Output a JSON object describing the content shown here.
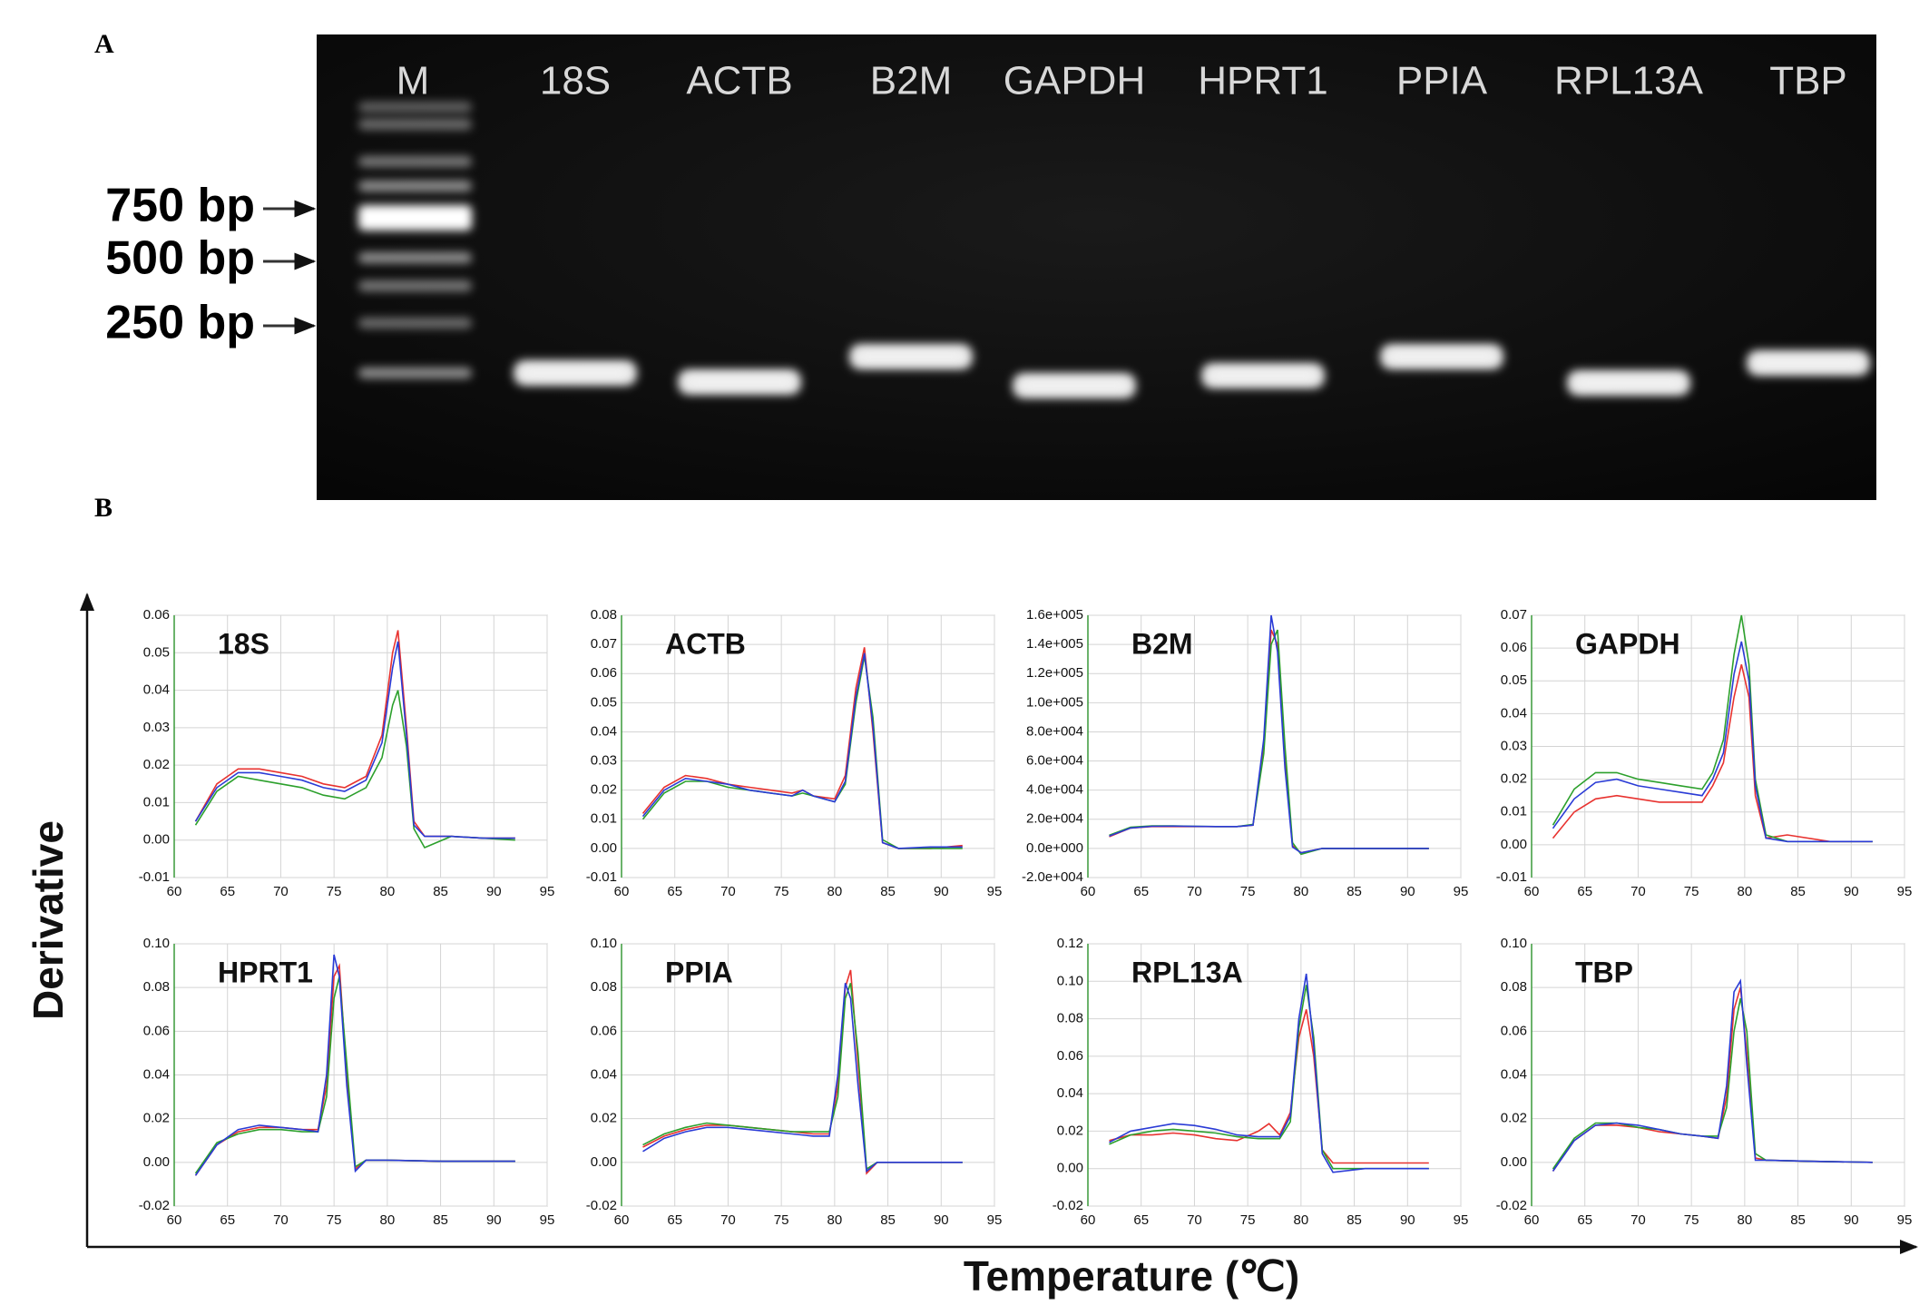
{
  "panel_labels": [
    "A",
    "B"
  ],
  "gel": {
    "lanes": [
      "M",
      "18S",
      "ACTB",
      "B2M",
      "GAPDH",
      "HPRT1",
      "PPIA",
      "RPL13A",
      "TBP"
    ],
    "markers": [
      "750 bp",
      "500 bp",
      "250 bp"
    ]
  },
  "figure": {
    "y_axis_label": "Derivative",
    "x_axis_label": "Temperature (℃)"
  },
  "chart_data": [
    {
      "type": "line",
      "title": "18S",
      "grid": true,
      "xlim": [
        60,
        95
      ],
      "xticks": [
        60,
        65,
        70,
        75,
        80,
        85,
        90,
        95
      ],
      "ylim": [
        -0.01,
        0.06
      ],
      "yticks": [
        -0.01,
        {
          "value": 0,
          "label": "0.00"
        },
        0.01,
        0.02,
        0.03,
        0.04,
        0.05,
        0.06
      ],
      "x": [
        62,
        64,
        66,
        68,
        70,
        72,
        74,
        76,
        78,
        79.5,
        80.5,
        81,
        81.8,
        82.5,
        83.5,
        86,
        89,
        92
      ],
      "series": [
        {
          "color": "#e8322f",
          "values": [
            0.005,
            0.015,
            0.019,
            0.019,
            0.018,
            0.017,
            0.015,
            0.014,
            0.017,
            0.028,
            0.05,
            0.056,
            0.03,
            0.005,
            0.001,
            0.001,
            0.0005,
            0.0005
          ]
        },
        {
          "color": "#2ca02c",
          "values": [
            0.004,
            0.013,
            0.017,
            0.016,
            0.015,
            0.014,
            0.012,
            0.011,
            0.014,
            0.022,
            0.036,
            0.04,
            0.025,
            0.003,
            -0.002,
            0.001,
            0.0005,
            0
          ]
        },
        {
          "color": "#2a3bd6",
          "values": [
            0.005,
            0.014,
            0.018,
            0.018,
            0.017,
            0.016,
            0.014,
            0.013,
            0.016,
            0.026,
            0.046,
            0.053,
            0.028,
            0.004,
            0.001,
            0.001,
            0.0005,
            0.0005
          ]
        }
      ]
    },
    {
      "type": "line",
      "title": "ACTB",
      "grid": true,
      "xlim": [
        60,
        95
      ],
      "xticks": [
        60,
        65,
        70,
        75,
        80,
        85,
        90,
        95
      ],
      "ylim": [
        -0.01,
        0.08
      ],
      "yticks": [
        -0.01,
        {
          "value": 0,
          "label": "0.00"
        },
        0.01,
        0.02,
        0.03,
        0.04,
        0.05,
        0.06,
        0.07,
        0.08
      ],
      "x": [
        62,
        64,
        66,
        68,
        70,
        72,
        74,
        76,
        77,
        78,
        80,
        81,
        82,
        82.8,
        83.6,
        84.5,
        86,
        89,
        92
      ],
      "series": [
        {
          "color": "#e8322f",
          "values": [
            0.012,
            0.021,
            0.025,
            0.024,
            0.022,
            0.021,
            0.02,
            0.019,
            0.02,
            0.018,
            0.017,
            0.025,
            0.055,
            0.069,
            0.04,
            0.002,
            0,
            0,
            0.001
          ]
        },
        {
          "color": "#2ca02c",
          "values": [
            0.01,
            0.019,
            0.023,
            0.023,
            0.021,
            0.02,
            0.019,
            0.018,
            0.019,
            0.018,
            0.016,
            0.022,
            0.05,
            0.066,
            0.045,
            0.003,
            0,
            0,
            0
          ]
        },
        {
          "color": "#2a3bd6",
          "values": [
            0.011,
            0.02,
            0.024,
            0.023,
            0.022,
            0.02,
            0.019,
            0.018,
            0.02,
            0.018,
            0.016,
            0.023,
            0.052,
            0.067,
            0.042,
            0.002,
            0,
            0.0005,
            0.0005
          ]
        }
      ]
    },
    {
      "type": "line",
      "title": "B2M",
      "grid": true,
      "xlim": [
        60,
        95
      ],
      "xticks": [
        60,
        65,
        70,
        75,
        80,
        85,
        90,
        95
      ],
      "ylim": [
        -20000,
        160000
      ],
      "yticks": [
        {
          "value": -20000,
          "label": "-2.0e+004"
        },
        {
          "value": 0,
          "label": "0.0e+000"
        },
        {
          "value": 20000,
          "label": "2.0e+004"
        },
        {
          "value": 40000,
          "label": "4.0e+004"
        },
        {
          "value": 60000,
          "label": "6.0e+004"
        },
        {
          "value": 80000,
          "label": "8.0e+004"
        },
        {
          "value": 100000,
          "label": "1.0e+005"
        },
        {
          "value": 120000,
          "label": "1.2e+005"
        },
        {
          "value": 140000,
          "label": "1.4e+005"
        },
        {
          "value": 160000,
          "label": "1.6e+005"
        }
      ],
      "x": [
        62,
        64,
        66,
        68,
        70,
        72,
        74,
        75.5,
        76.5,
        77.2,
        77.8,
        78.5,
        79.2,
        80,
        82,
        86,
        92
      ],
      "series": [
        {
          "color": "#e8322f",
          "values": [
            8000,
            14000,
            15000,
            15000,
            15000,
            15000,
            15000,
            16000,
            70000,
            150000,
            140000,
            60000,
            2000,
            -3000,
            0,
            0,
            0
          ]
        },
        {
          "color": "#2ca02c",
          "values": [
            9000,
            14500,
            15500,
            15500,
            15200,
            15000,
            15000,
            16500,
            65000,
            140000,
            150000,
            70000,
            4000,
            -4000,
            0,
            0,
            0
          ]
        },
        {
          "color": "#2a3bd6",
          "values": [
            8500,
            14000,
            15200,
            15300,
            15100,
            15000,
            15000,
            16000,
            75000,
            160000,
            135000,
            55000,
            1000,
            -3000,
            0,
            0,
            0
          ]
        }
      ]
    },
    {
      "type": "line",
      "title": "GAPDH",
      "grid": true,
      "xlim": [
        60,
        95
      ],
      "xticks": [
        60,
        65,
        70,
        75,
        80,
        85,
        90,
        95
      ],
      "ylim": [
        -0.01,
        0.07
      ],
      "yticks": [
        -0.01,
        {
          "value": 0,
          "label": "0.00"
        },
        0.01,
        0.02,
        0.03,
        0.04,
        0.05,
        0.06,
        0.07
      ],
      "x": [
        62,
        64,
        66,
        68,
        70,
        72,
        74,
        76,
        77,
        78,
        79,
        79.7,
        80.4,
        81,
        82,
        84,
        88,
        92
      ],
      "series": [
        {
          "color": "#e8322f",
          "values": [
            0.002,
            0.01,
            0.014,
            0.015,
            0.014,
            0.013,
            0.013,
            0.013,
            0.018,
            0.025,
            0.045,
            0.055,
            0.045,
            0.015,
            0.002,
            0.003,
            0.001,
            0.001
          ]
        },
        {
          "color": "#2ca02c",
          "values": [
            0.006,
            0.017,
            0.022,
            0.022,
            0.02,
            0.019,
            0.018,
            0.017,
            0.022,
            0.032,
            0.058,
            0.07,
            0.055,
            0.02,
            0.003,
            0.001,
            0.001,
            0.001
          ]
        },
        {
          "color": "#2a3bd6",
          "values": [
            0.005,
            0.014,
            0.019,
            0.02,
            0.018,
            0.017,
            0.016,
            0.015,
            0.02,
            0.028,
            0.052,
            0.062,
            0.05,
            0.018,
            0.002,
            0.001,
            0.001,
            0.001
          ]
        }
      ]
    },
    {
      "type": "line",
      "title": "HPRT1",
      "grid": true,
      "xlim": [
        60,
        95
      ],
      "xticks": [
        60,
        65,
        70,
        75,
        80,
        85,
        90,
        95
      ],
      "ylim": [
        -0.02,
        0.1
      ],
      "yticks": [
        -0.02,
        {
          "value": 0,
          "label": "0.00"
        },
        0.02,
        0.04,
        0.06,
        0.08,
        {
          "value": 0.1,
          "label": "0.10"
        }
      ],
      "x": [
        62,
        64,
        66,
        68,
        70,
        72,
        73.5,
        74.3,
        75,
        75.5,
        76.2,
        77,
        78,
        80,
        85,
        92
      ],
      "series": [
        {
          "color": "#e8322f",
          "values": [
            -0.006,
            0.008,
            0.014,
            0.016,
            0.016,
            0.015,
            0.015,
            0.035,
            0.085,
            0.09,
            0.04,
            -0.003,
            0.001,
            0.001,
            0.0005,
            0.0005
          ]
        },
        {
          "color": "#2ca02c",
          "values": [
            -0.005,
            0.009,
            0.013,
            0.015,
            0.015,
            0.014,
            0.014,
            0.03,
            0.075,
            0.085,
            0.045,
            -0.002,
            0.001,
            0.001,
            0.0005,
            0.0005
          ]
        },
        {
          "color": "#2a3bd6",
          "values": [
            -0.006,
            0.008,
            0.015,
            0.017,
            0.016,
            0.015,
            0.014,
            0.04,
            0.095,
            0.085,
            0.035,
            -0.004,
            0.001,
            0.001,
            0.0005,
            0.0005
          ]
        }
      ]
    },
    {
      "type": "line",
      "title": "PPIA",
      "grid": true,
      "xlim": [
        60,
        95
      ],
      "xticks": [
        60,
        65,
        70,
        75,
        80,
        85,
        90,
        95
      ],
      "ylim": [
        -0.02,
        0.1
      ],
      "yticks": [
        -0.02,
        {
          "value": 0,
          "label": "0.00"
        },
        0.02,
        0.04,
        0.06,
        0.08,
        {
          "value": 0.1,
          "label": "0.10"
        }
      ],
      "x": [
        62,
        64,
        66,
        68,
        70,
        72,
        74,
        76,
        78,
        79.5,
        80.3,
        81,
        81.5,
        82.2,
        83,
        84,
        88,
        92
      ],
      "series": [
        {
          "color": "#e8322f",
          "values": [
            0.007,
            0.012,
            0.015,
            0.017,
            0.017,
            0.016,
            0.015,
            0.014,
            0.013,
            0.013,
            0.035,
            0.08,
            0.088,
            0.045,
            -0.005,
            0,
            0,
            0
          ]
        },
        {
          "color": "#2ca02c",
          "values": [
            0.008,
            0.013,
            0.016,
            0.018,
            0.017,
            0.016,
            0.015,
            0.014,
            0.014,
            0.014,
            0.03,
            0.075,
            0.082,
            0.05,
            -0.003,
            0,
            0,
            0
          ]
        },
        {
          "color": "#2a3bd6",
          "values": [
            0.005,
            0.011,
            0.014,
            0.016,
            0.016,
            0.015,
            0.014,
            0.013,
            0.012,
            0.012,
            0.04,
            0.082,
            0.075,
            0.035,
            -0.004,
            0,
            0,
            0
          ]
        }
      ]
    },
    {
      "type": "line",
      "title": "RPL13A",
      "grid": true,
      "xlim": [
        60,
        95
      ],
      "xticks": [
        60,
        65,
        70,
        75,
        80,
        85,
        90,
        95
      ],
      "ylim": [
        -0.02,
        0.12
      ],
      "yticks": [
        -0.02,
        {
          "value": 0,
          "label": "0.00"
        },
        0.02,
        0.04,
        0.06,
        0.08,
        {
          "value": 0.1,
          "label": "0.10"
        },
        0.12
      ],
      "x": [
        62,
        64,
        66,
        68,
        70,
        72,
        74,
        76,
        77,
        78,
        79,
        79.8,
        80.5,
        81.2,
        82,
        83,
        86,
        92
      ],
      "series": [
        {
          "color": "#e8322f",
          "values": [
            0.015,
            0.018,
            0.018,
            0.019,
            0.018,
            0.016,
            0.015,
            0.02,
            0.024,
            0.018,
            0.03,
            0.07,
            0.085,
            0.06,
            0.01,
            0.003,
            0.003,
            0.003
          ]
        },
        {
          "color": "#2ca02c",
          "values": [
            0.013,
            0.018,
            0.02,
            0.021,
            0.02,
            0.019,
            0.017,
            0.016,
            0.016,
            0.016,
            0.025,
            0.075,
            0.098,
            0.07,
            0.01,
            0,
            0,
            0
          ]
        },
        {
          "color": "#2a3bd6",
          "values": [
            0.014,
            0.02,
            0.022,
            0.024,
            0.023,
            0.021,
            0.018,
            0.017,
            0.017,
            0.017,
            0.028,
            0.08,
            0.104,
            0.065,
            0.008,
            -0.002,
            0,
            0
          ]
        }
      ]
    },
    {
      "type": "line",
      "title": "TBP",
      "grid": true,
      "xlim": [
        60,
        95
      ],
      "xticks": [
        60,
        65,
        70,
        75,
        80,
        85,
        90,
        95
      ],
      "ylim": [
        -0.02,
        0.1
      ],
      "yticks": [
        -0.02,
        {
          "value": 0,
          "label": "0.00"
        },
        0.02,
        0.04,
        0.06,
        0.08,
        {
          "value": 0.1,
          "label": "0.10"
        }
      ],
      "x": [
        62,
        64,
        66,
        68,
        70,
        72,
        74,
        76,
        77.5,
        78.3,
        79,
        79.6,
        80.2,
        81,
        82,
        86,
        92
      ],
      "series": [
        {
          "color": "#e8322f",
          "values": [
            -0.004,
            0.01,
            0.017,
            0.017,
            0.016,
            0.014,
            0.013,
            0.012,
            0.011,
            0.03,
            0.07,
            0.08,
            0.05,
            0.002,
            0.001,
            0.0005,
            0
          ]
        },
        {
          "color": "#2ca02c",
          "values": [
            -0.003,
            0.011,
            0.018,
            0.018,
            0.016,
            0.015,
            0.013,
            0.012,
            0.012,
            0.025,
            0.06,
            0.075,
            0.06,
            0.004,
            0.001,
            0.0005,
            0
          ]
        },
        {
          "color": "#2a3bd6",
          "values": [
            -0.004,
            0.01,
            0.017,
            0.018,
            0.017,
            0.015,
            0.013,
            0.012,
            0.011,
            0.035,
            0.078,
            0.083,
            0.045,
            0.001,
            0.001,
            0.0005,
            0
          ]
        }
      ]
    }
  ]
}
